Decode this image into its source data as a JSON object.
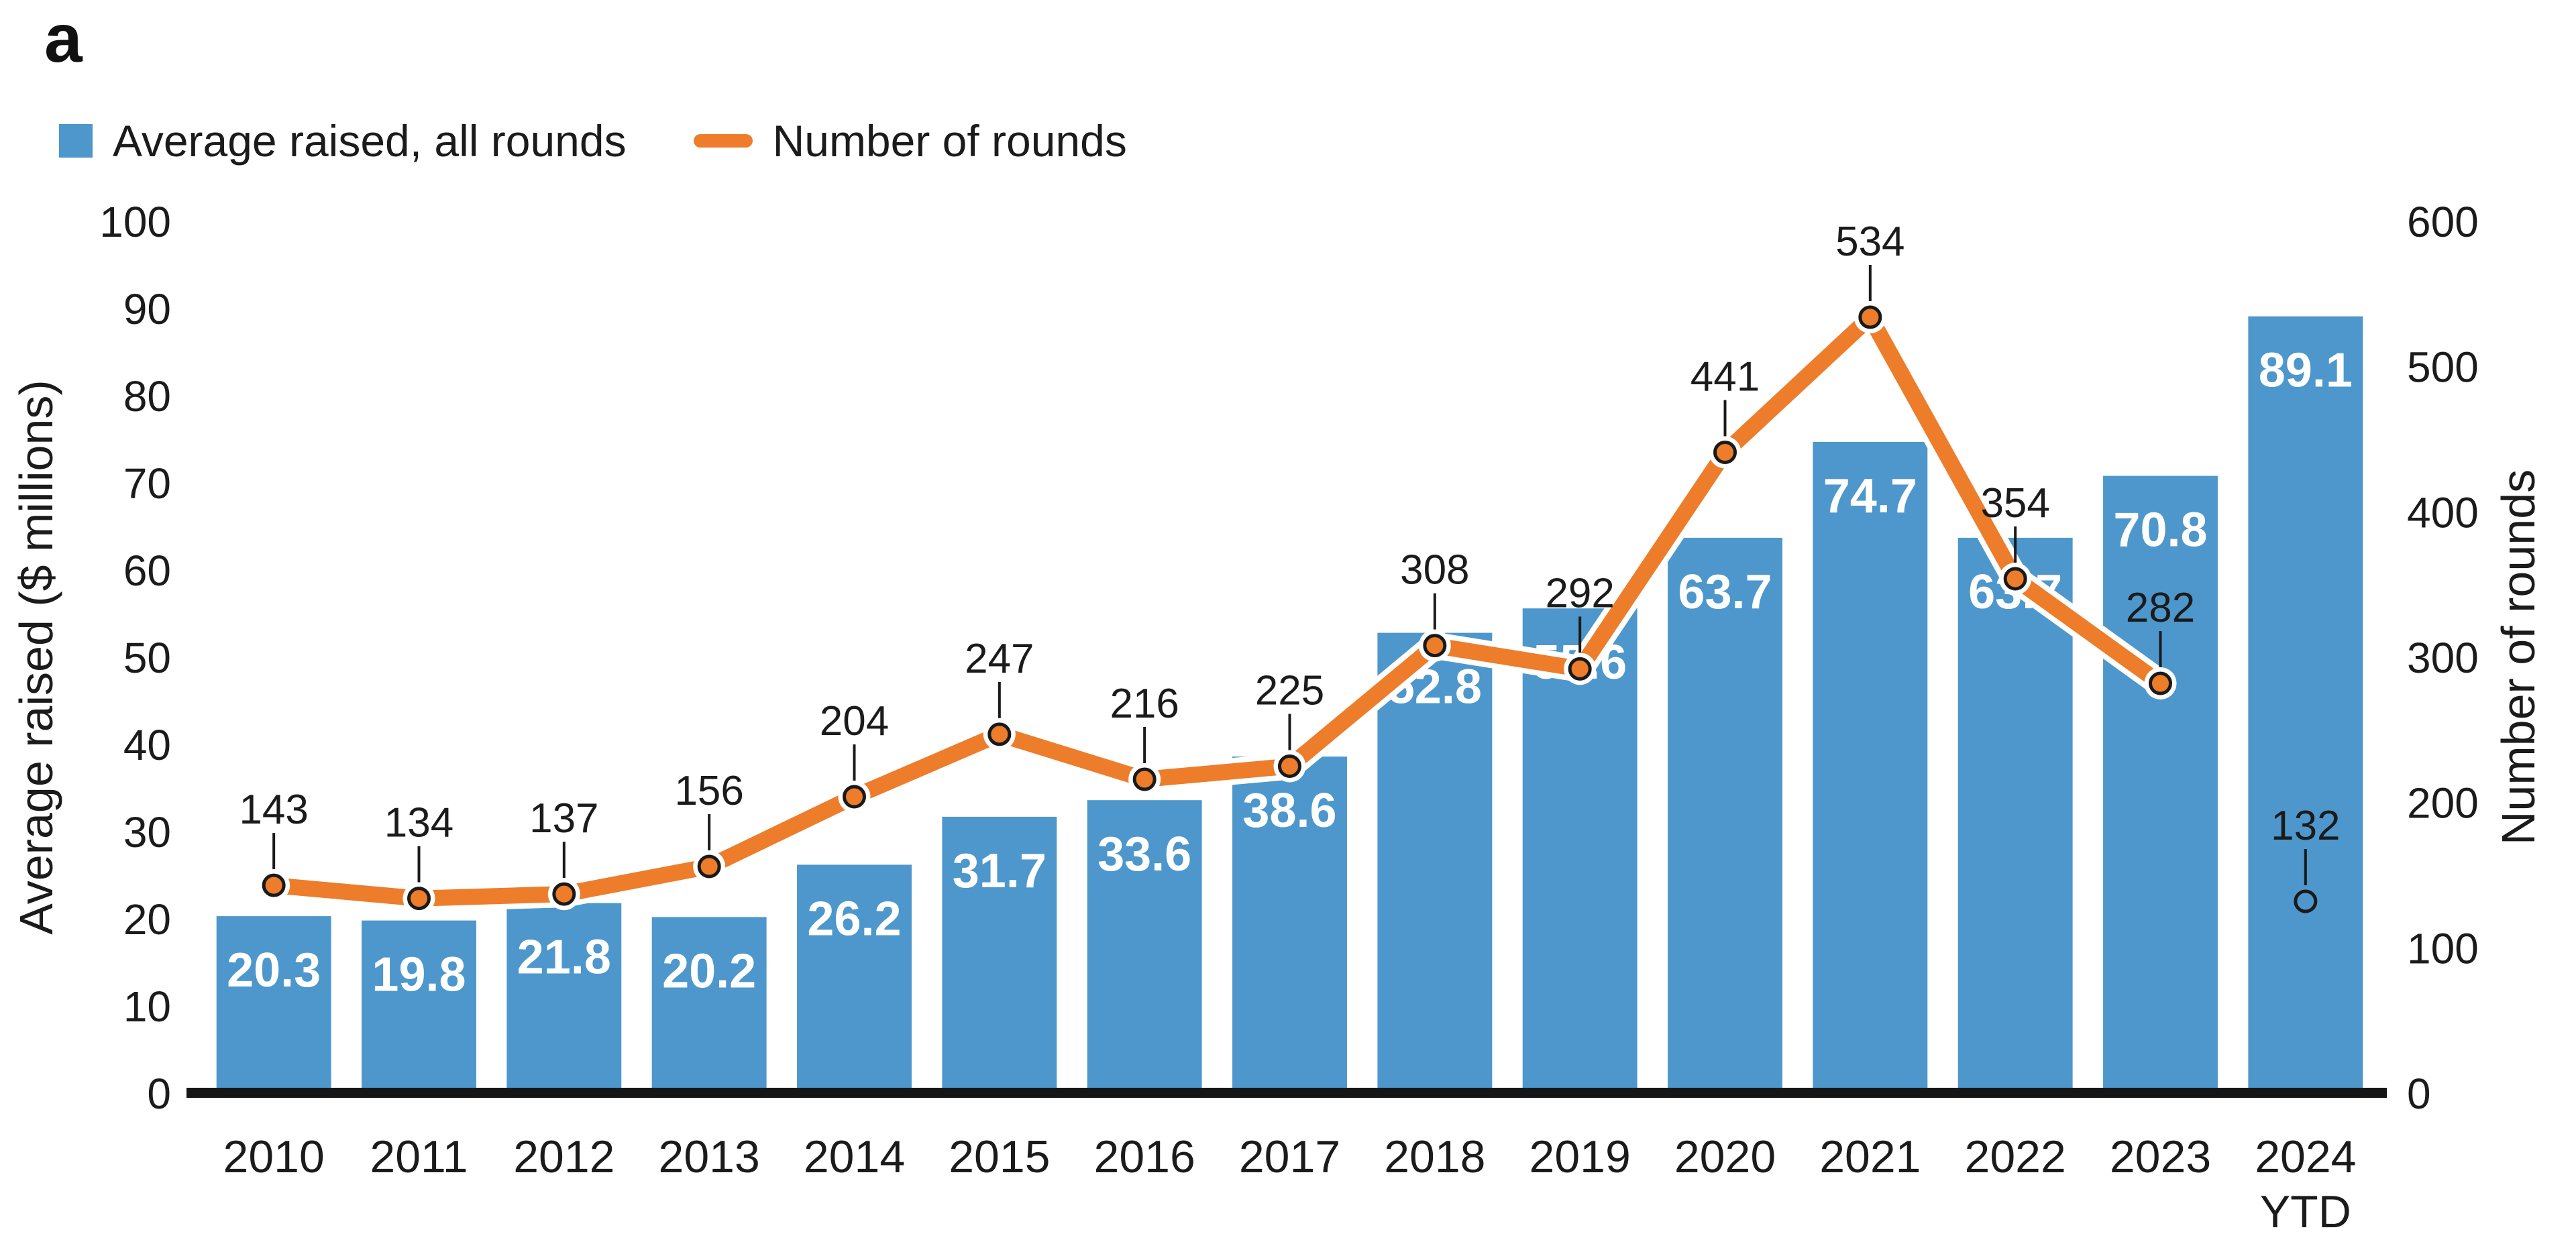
{
  "panel_label": "a",
  "legend": {
    "bar_label": "Average raised, all rounds",
    "line_label": "Number of rounds"
  },
  "left_axis": {
    "title": "Average raised ($ millions)",
    "ticks": [
      0,
      10,
      20,
      30,
      40,
      50,
      60,
      70,
      80,
      90,
      100
    ],
    "range": [
      0,
      100
    ]
  },
  "right_axis": {
    "title": "Number of rounds",
    "ticks": [
      0,
      100,
      200,
      300,
      400,
      500,
      600
    ],
    "range": [
      0,
      600
    ]
  },
  "chart_data": {
    "type": "bar",
    "categories": [
      "2010",
      "2011",
      "2012",
      "2013",
      "2014",
      "2015",
      "2016",
      "2017",
      "2018",
      "2019",
      "2020",
      "2021",
      "2022",
      "2023",
      "2024 YTD"
    ],
    "series": [
      {
        "name": "Average raised, all rounds",
        "type": "bar",
        "axis": "left",
        "values": [
          20.3,
          19.8,
          21.8,
          20.2,
          26.2,
          31.7,
          33.6,
          38.6,
          52.8,
          55.6,
          63.7,
          74.7,
          63.7,
          70.8,
          89.1
        ],
        "labels": [
          "20.3",
          "19.8",
          "21.8",
          "20.2",
          "26.2",
          "31.7",
          "33.6",
          "38.6",
          "52.8",
          "55.6",
          "63.7",
          "74.7",
          "63.7",
          "70.8",
          "89.1"
        ]
      },
      {
        "name": "Number of rounds",
        "type": "line",
        "axis": "right",
        "values": [
          143,
          134,
          137,
          156,
          204,
          247,
          216,
          225,
          308,
          292,
          441,
          534,
          354,
          282,
          132
        ],
        "labels": [
          "143",
          "134",
          "137",
          "156",
          "204",
          "247",
          "216",
          "225",
          "308",
          "292",
          "441",
          "534",
          "354",
          "282",
          "132"
        ]
      }
    ],
    "title": "",
    "xlabel": "",
    "ylabel": "Average raised ($ millions)",
    "ylabel_right": "Number of rounds",
    "ylim": [
      0,
      100
    ],
    "ylim_right": [
      0,
      600
    ],
    "grid": false,
    "legend_position": "top-left",
    "detached_line_point_index": 14
  },
  "colors": {
    "bar": "#4D97CC",
    "line": "#ED7D2B",
    "text": "#1b1b1b",
    "bar_value_label": "#ffffff",
    "marker_stroke": "#1a1a1a",
    "axis_line": "#161616",
    "background": "#ffffff"
  }
}
